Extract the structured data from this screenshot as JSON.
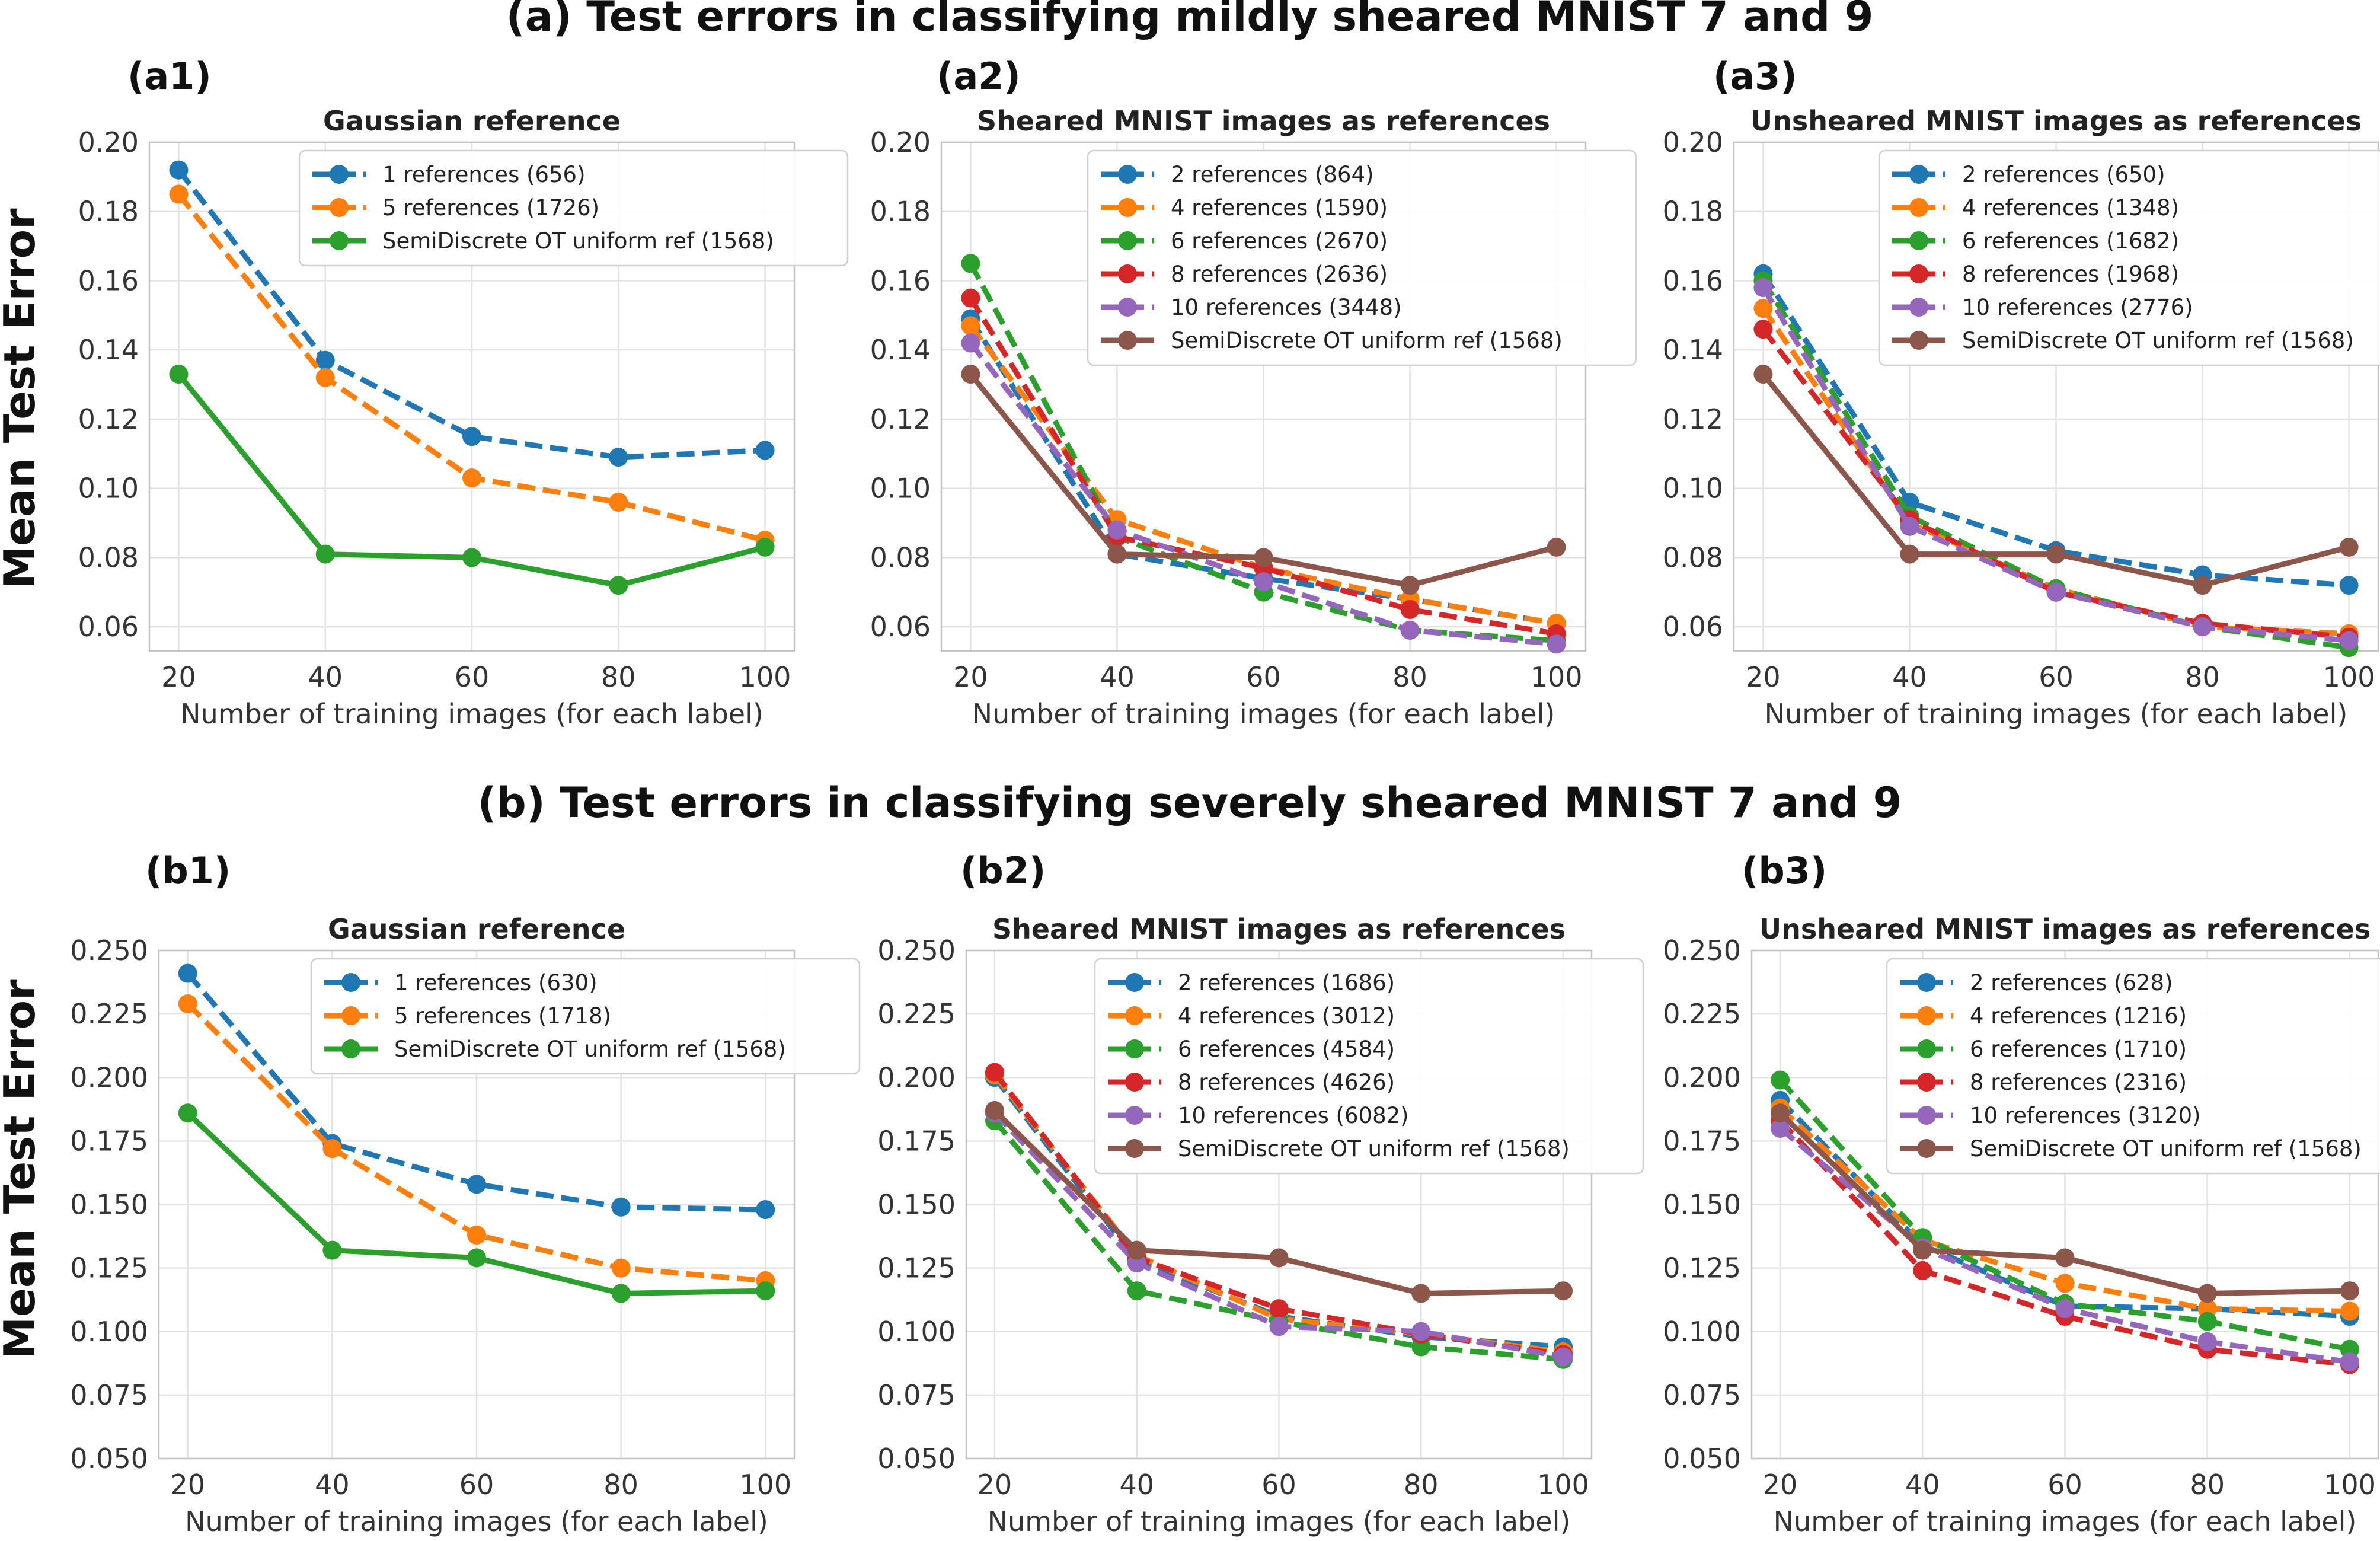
{
  "figure": {
    "row_titles": [
      "(a) Test errors in classifying mildly sheared MNIST 7 and 9",
      "(b) Test errors in classifying severely sheared MNIST 7 and 9"
    ],
    "ylabel": "Mean Test Error",
    "colors": {
      "blue": "#1f77b4",
      "orange": "#ff7f0e",
      "green": "#2ca02c",
      "red": "#d62728",
      "purple": "#9467bd",
      "brown": "#8c564b"
    }
  },
  "chart_data": [
    {
      "label": "(a1)",
      "type": "line",
      "title": "Gaussian reference",
      "xlabel": "Number of training images (for each label)",
      "ylabel": "Mean Test Error",
      "x": [
        20,
        40,
        60,
        80,
        100
      ],
      "ylim": [
        0.053,
        0.2
      ],
      "yticks": [
        "0.06",
        "0.08",
        "0.10",
        "0.12",
        "0.14",
        "0.16",
        "0.18",
        "0.20"
      ],
      "xticks": [
        "20",
        "40",
        "60",
        "80",
        "100"
      ],
      "series": [
        {
          "name": "1 references (656)",
          "color": "blue",
          "dashed": true,
          "values": [
            0.192,
            0.137,
            0.115,
            0.109,
            0.111
          ]
        },
        {
          "name": "5 references (1726)",
          "color": "orange",
          "dashed": true,
          "values": [
            0.185,
            0.132,
            0.103,
            0.096,
            0.085
          ]
        },
        {
          "name": "SemiDiscrete OT uniform ref (1568)",
          "color": "green",
          "dashed": false,
          "values": [
            0.133,
            0.081,
            0.08,
            0.072,
            0.083
          ]
        }
      ]
    },
    {
      "label": "(a2)",
      "type": "line",
      "title": "Sheared MNIST images as references",
      "xlabel": "Number of training images (for each label)",
      "ylabel": "",
      "x": [
        20,
        40,
        60,
        80,
        100
      ],
      "ylim": [
        0.053,
        0.2
      ],
      "yticks": [
        "0.06",
        "0.08",
        "0.10",
        "0.12",
        "0.14",
        "0.16",
        "0.18",
        "0.20"
      ],
      "xticks": [
        "20",
        "40",
        "60",
        "80",
        "100"
      ],
      "series": [
        {
          "name": "2 references (864)",
          "color": "blue",
          "dashed": true,
          "values": [
            0.149,
            0.081,
            0.074,
            0.068,
            0.061
          ]
        },
        {
          "name": "4 references (1590)",
          "color": "orange",
          "dashed": true,
          "values": [
            0.147,
            0.091,
            0.077,
            0.068,
            0.061
          ]
        },
        {
          "name": "6 references (2670)",
          "color": "green",
          "dashed": true,
          "values": [
            0.165,
            0.086,
            0.07,
            0.059,
            0.056
          ]
        },
        {
          "name": "8 references (2636)",
          "color": "red",
          "dashed": true,
          "values": [
            0.155,
            0.086,
            0.077,
            0.065,
            0.058
          ]
        },
        {
          "name": "10 references (3448)",
          "color": "purple",
          "dashed": true,
          "values": [
            0.142,
            0.088,
            0.073,
            0.059,
            0.055
          ]
        },
        {
          "name": "SemiDiscrete OT uniform ref (1568)",
          "color": "brown",
          "dashed": false,
          "values": [
            0.133,
            0.081,
            0.08,
            0.072,
            0.083
          ]
        }
      ]
    },
    {
      "label": "(a3)",
      "type": "line",
      "title": "Unsheared MNIST images as references",
      "xlabel": "Number of training images (for each label)",
      "ylabel": "",
      "x": [
        20,
        40,
        60,
        80,
        100
      ],
      "ylim": [
        0.053,
        0.2
      ],
      "yticks": [
        "0.06",
        "0.08",
        "0.10",
        "0.12",
        "0.14",
        "0.16",
        "0.18",
        "0.20"
      ],
      "xticks": [
        "20",
        "40",
        "60",
        "80",
        "100"
      ],
      "series": [
        {
          "name": "2 references (650)",
          "color": "blue",
          "dashed": true,
          "values": [
            0.162,
            0.096,
            0.082,
            0.075,
            0.072
          ]
        },
        {
          "name": "4 references (1348)",
          "color": "orange",
          "dashed": true,
          "values": [
            0.152,
            0.09,
            0.071,
            0.06,
            0.058
          ]
        },
        {
          "name": "6 references (1682)",
          "color": "green",
          "dashed": true,
          "values": [
            0.16,
            0.092,
            0.071,
            0.06,
            0.054
          ]
        },
        {
          "name": "8 references (1968)",
          "color": "red",
          "dashed": true,
          "values": [
            0.146,
            0.091,
            0.07,
            0.061,
            0.057
          ]
        },
        {
          "name": "10 references (2776)",
          "color": "purple",
          "dashed": true,
          "values": [
            0.158,
            0.089,
            0.07,
            0.06,
            0.056
          ]
        },
        {
          "name": "SemiDiscrete OT uniform ref (1568)",
          "color": "brown",
          "dashed": false,
          "values": [
            0.133,
            0.081,
            0.081,
            0.072,
            0.083
          ]
        }
      ]
    },
    {
      "label": "(b1)",
      "type": "line",
      "title": "Gaussian reference",
      "xlabel": "Number of training images (for each label)",
      "ylabel": "Mean Test Error",
      "x": [
        20,
        40,
        60,
        80,
        100
      ],
      "ylim": [
        0.05,
        0.25
      ],
      "yticks": [
        "0.050",
        "0.075",
        "0.100",
        "0.125",
        "0.150",
        "0.175",
        "0.200",
        "0.225",
        "0.250"
      ],
      "xticks": [
        "20",
        "40",
        "60",
        "80",
        "100"
      ],
      "series": [
        {
          "name": "1 references (630)",
          "color": "blue",
          "dashed": true,
          "values": [
            0.241,
            0.174,
            0.158,
            0.149,
            0.148
          ]
        },
        {
          "name": "5 references (1718)",
          "color": "orange",
          "dashed": true,
          "values": [
            0.229,
            0.172,
            0.138,
            0.125,
            0.12
          ]
        },
        {
          "name": "SemiDiscrete OT uniform ref (1568)",
          "color": "green",
          "dashed": false,
          "values": [
            0.186,
            0.132,
            0.129,
            0.115,
            0.116
          ]
        }
      ]
    },
    {
      "label": "(b2)",
      "type": "line",
      "title": "Sheared MNIST images as references",
      "xlabel": "Number of training images (for each label)",
      "ylabel": "",
      "x": [
        20,
        40,
        60,
        80,
        100
      ],
      "ylim": [
        0.05,
        0.25
      ],
      "yticks": [
        "0.050",
        "0.075",
        "0.100",
        "0.125",
        "0.150",
        "0.175",
        "0.200",
        "0.225",
        "0.250"
      ],
      "xticks": [
        "20",
        "40",
        "60",
        "80",
        "100"
      ],
      "series": [
        {
          "name": "2 references (1686)",
          "color": "blue",
          "dashed": true,
          "values": [
            0.2,
            0.128,
            0.106,
            0.098,
            0.094
          ]
        },
        {
          "name": "4 references (3012)",
          "color": "orange",
          "dashed": true,
          "values": [
            0.201,
            0.13,
            0.105,
            0.099,
            0.092
          ]
        },
        {
          "name": "6 references (4584)",
          "color": "green",
          "dashed": true,
          "values": [
            0.183,
            0.116,
            0.104,
            0.094,
            0.089
          ]
        },
        {
          "name": "8 references (4626)",
          "color": "red",
          "dashed": true,
          "values": [
            0.202,
            0.129,
            0.109,
            0.099,
            0.091
          ]
        },
        {
          "name": "10 references (6082)",
          "color": "purple",
          "dashed": true,
          "values": [
            0.186,
            0.127,
            0.102,
            0.1,
            0.09
          ]
        },
        {
          "name": "SemiDiscrete OT uniform ref (1568)",
          "color": "brown",
          "dashed": false,
          "values": [
            0.187,
            0.132,
            0.129,
            0.115,
            0.116
          ]
        }
      ]
    },
    {
      "label": "(b3)",
      "type": "line",
      "title": "Unsheared MNIST images as references",
      "xlabel": "Number of training images (for each label)",
      "ylabel": "",
      "x": [
        20,
        40,
        60,
        80,
        100
      ],
      "ylim": [
        0.05,
        0.25
      ],
      "yticks": [
        "0.050",
        "0.075",
        "0.100",
        "0.125",
        "0.150",
        "0.175",
        "0.200",
        "0.225",
        "0.250"
      ],
      "xticks": [
        "20",
        "40",
        "60",
        "80",
        "100"
      ],
      "series": [
        {
          "name": "2 references (628)",
          "color": "blue",
          "dashed": true,
          "values": [
            0.191,
            0.134,
            0.11,
            0.109,
            0.106
          ]
        },
        {
          "name": "4 references (1216)",
          "color": "orange",
          "dashed": true,
          "values": [
            0.188,
            0.136,
            0.119,
            0.109,
            0.108
          ]
        },
        {
          "name": "6 references (1710)",
          "color": "green",
          "dashed": true,
          "values": [
            0.199,
            0.137,
            0.111,
            0.104,
            0.093
          ]
        },
        {
          "name": "8 references (2316)",
          "color": "red",
          "dashed": true,
          "values": [
            0.183,
            0.124,
            0.106,
            0.093,
            0.087
          ]
        },
        {
          "name": "10 references (3120)",
          "color": "purple",
          "dashed": true,
          "values": [
            0.18,
            0.133,
            0.109,
            0.096,
            0.088
          ]
        },
        {
          "name": "SemiDiscrete OT uniform ref (1568)",
          "color": "brown",
          "dashed": false,
          "values": [
            0.186,
            0.132,
            0.129,
            0.115,
            0.116
          ]
        }
      ]
    }
  ]
}
